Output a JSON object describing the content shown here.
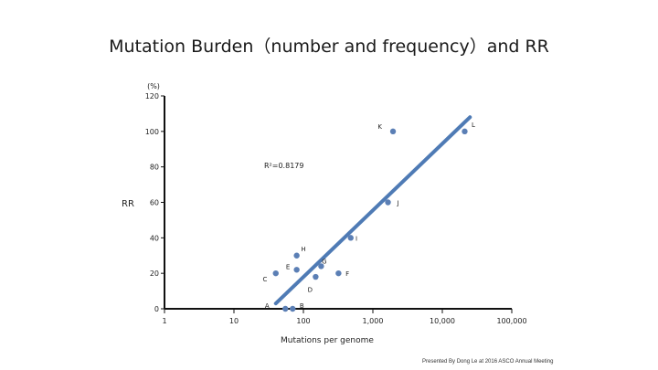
{
  "slide": {
    "title": "Mutation Burden（number and frequency）and RR",
    "footer": "Presented By Dong Le at 2016 ASCO Annual Meeting"
  },
  "chart_data": {
    "type": "scatter",
    "title": "Mutation Burden（number and frequency）and RR",
    "xlabel": "Mutations per genome",
    "ylabel": "RR",
    "yunit": "(%)",
    "xscale": "log",
    "xlim": [
      1,
      100000
    ],
    "ylim": [
      0,
      120
    ],
    "xticks": [
      1,
      10,
      100,
      1000,
      10000,
      100000
    ],
    "xtick_labels": [
      "1",
      "10",
      "100",
      "1,000",
      "10,000",
      "100,000"
    ],
    "yticks": [
      0,
      20,
      40,
      60,
      80,
      100,
      120
    ],
    "ytick_labels": [
      "0",
      "20",
      "40",
      "60",
      "80",
      "100",
      "120"
    ],
    "annotation": "R²=0.8179",
    "grid": false,
    "series": [
      {
        "points": [
          {
            "x": 40,
            "y": 20
          },
          {
            "x": 55,
            "y": 0
          },
          {
            "x": 70,
            "y": 0
          },
          {
            "x": 80,
            "y": 22
          },
          {
            "x": 80,
            "y": 30
          },
          {
            "x": 150,
            "y": 18
          },
          {
            "x": 180,
            "y": 24
          },
          {
            "x": 320,
            "y": 20
          },
          {
            "x": 480,
            "y": 40
          },
          {
            "x": 1650,
            "y": 60
          },
          {
            "x": 1950,
            "y": 100
          },
          {
            "x": 21000,
            "y": 100
          }
        ]
      }
    ],
    "point_labels": [
      {
        "text": "A",
        "x": 30,
        "y": 2
      },
      {
        "text": "B",
        "x": 95,
        "y": 2
      },
      {
        "text": "C",
        "x": 28,
        "y": 17
      },
      {
        "text": "D",
        "x": 125,
        "y": 11
      },
      {
        "text": "E",
        "x": 60,
        "y": 24
      },
      {
        "text": "F",
        "x": 430,
        "y": 20
      },
      {
        "text": "G",
        "x": 200,
        "y": 27
      },
      {
        "text": "H",
        "x": 100,
        "y": 34
      },
      {
        "text": "I",
        "x": 580,
        "y": 40
      },
      {
        "text": "J",
        "x": 2300,
        "y": 60
      },
      {
        "text": "K",
        "x": 1260,
        "y": 103
      },
      {
        "text": "L",
        "x": 28000,
        "y": 104
      }
    ],
    "trendline": {
      "x": [
        40,
        25000
      ],
      "y": [
        3,
        108
      ]
    },
    "colors": {
      "points": "#5b7fb5",
      "trendline": "#4f7bb5",
      "axis": "#111111"
    }
  }
}
